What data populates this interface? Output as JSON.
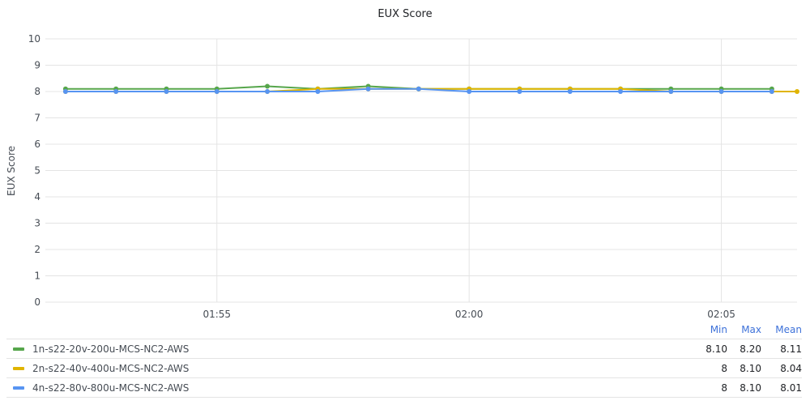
{
  "chart_data": {
    "type": "line",
    "title": "EUX Score",
    "ylabel": "EUX Score",
    "xlabel": "",
    "ylim": [
      0,
      10
    ],
    "yticks": [
      "0",
      "1",
      "2",
      "3",
      "4",
      "5",
      "6",
      "7",
      "8",
      "9",
      "10"
    ],
    "xlim": [
      "01:51:36",
      "02:06:30"
    ],
    "xticks": [
      {
        "time": "01:55:00",
        "label": "01:55"
      },
      {
        "time": "02:00:00",
        "label": "02:00"
      },
      {
        "time": "02:05:00",
        "label": "02:05"
      }
    ],
    "legend_columns": {
      "min": "Min",
      "max": "Max",
      "mean": "Mean"
    },
    "series": [
      {
        "name": "1n-s22-20v-200u-MCS-NC2-AWS",
        "color": "#56a64b",
        "x": [
          "01:52:00",
          "01:53:00",
          "01:54:00",
          "01:55:00",
          "01:56:00",
          "01:57:00",
          "01:58:00",
          "01:59:00",
          "02:00:00",
          "02:01:00",
          "02:02:00",
          "02:03:00",
          "02:04:00",
          "02:05:00",
          "02:06:00"
        ],
        "y": [
          8.1,
          8.1,
          8.1,
          8.1,
          8.2,
          8.1,
          8.2,
          8.1,
          8.1,
          8.1,
          8.1,
          8.1,
          8.1,
          8.1,
          8.1
        ],
        "min": "8.10",
        "max": "8.20",
        "mean": "8.11"
      },
      {
        "name": "2n-s22-40v-400u-MCS-NC2-AWS",
        "color": "#e0b400",
        "x": [
          "01:52:00",
          "01:53:00",
          "01:54:00",
          "01:55:00",
          "01:56:00",
          "01:57:00",
          "01:58:00",
          "01:59:00",
          "02:00:00",
          "02:01:00",
          "02:02:00",
          "02:03:00",
          "02:04:00",
          "02:05:00",
          "02:06:00",
          "02:06:30"
        ],
        "y": [
          8.0,
          8.0,
          8.0,
          8.0,
          8.0,
          8.1,
          8.1,
          8.1,
          8.1,
          8.1,
          8.1,
          8.1,
          8.0,
          8.0,
          8.0,
          8.0
        ],
        "min": "8",
        "max": "8.10",
        "mean": "8.04"
      },
      {
        "name": "4n-s22-80v-800u-MCS-NC2-AWS",
        "color": "#5794f2",
        "x": [
          "01:52:00",
          "01:53:00",
          "01:54:00",
          "01:55:00",
          "01:56:00",
          "01:57:00",
          "01:58:00",
          "01:59:00",
          "02:00:00",
          "02:01:00",
          "02:02:00",
          "02:03:00",
          "02:04:00",
          "02:05:00",
          "02:06:00"
        ],
        "y": [
          8.0,
          8.0,
          8.0,
          8.0,
          8.0,
          8.0,
          8.1,
          8.1,
          8.0,
          8.0,
          8.0,
          8.0,
          8.0,
          8.0,
          8.0
        ],
        "min": "8",
        "max": "8.10",
        "mean": "8.01"
      }
    ]
  }
}
